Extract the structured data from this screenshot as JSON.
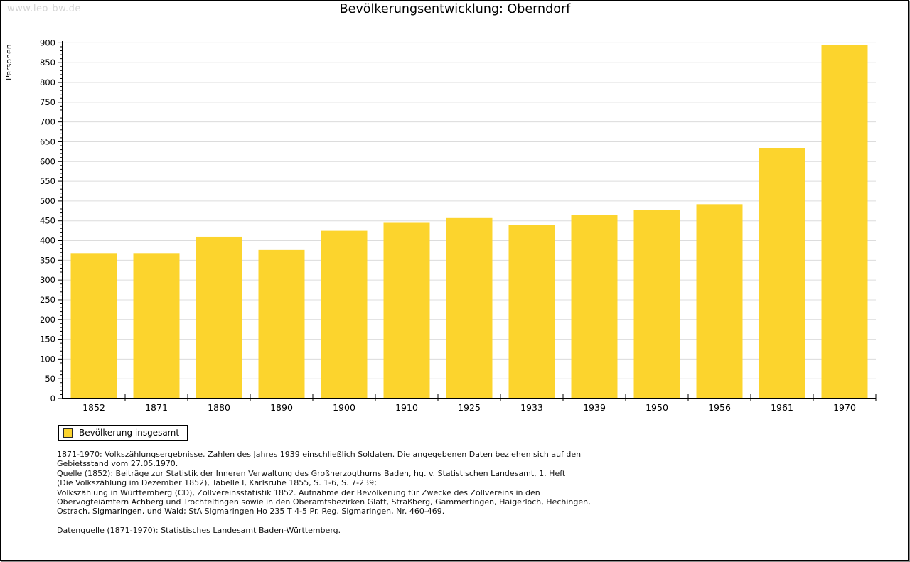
{
  "watermark": "www.leo-bw.de",
  "title": "Bevölkerungsentwicklung: Oberndorf",
  "chart_data": {
    "type": "bar",
    "title": "Bevölkerungsentwicklung: Oberndorf",
    "xlabel": "",
    "ylabel": "Personen",
    "categories": [
      "1852",
      "1871",
      "1880",
      "1890",
      "1900",
      "1910",
      "1925",
      "1933",
      "1939",
      "1950",
      "1956",
      "1961",
      "1970"
    ],
    "values": [
      368,
      368,
      410,
      376,
      425,
      445,
      457,
      440,
      465,
      478,
      492,
      634,
      895
    ],
    "series_name": "Bevölkerung insgesamt",
    "ylim": [
      0,
      900
    ],
    "ytick_step": 50,
    "yminor_step": 10,
    "grid": true,
    "legend_position": "bottom-left",
    "bar_color": "#FCD42D",
    "grid_color": "#dcdcdc",
    "axis_color": "#000000"
  },
  "legend": {
    "label": "Bevölkerung insgesamt",
    "swatch_color": "#FCD42D"
  },
  "footnotes": {
    "lines": [
      "1871-1970: Volkszählungsergebnisse. Zahlen des Jahres 1939 einschließlich Soldaten. Die angegebenen Daten beziehen sich auf den",
      "Gebietsstand vom 27.05.1970.",
      "Quelle (1852): Beiträge zur Statistik der Inneren Verwaltung des Großherzogthums Baden, hg. v. Statistischen Landesamt, 1. Heft",
      "(Die Volkszählung im Dezember 1852), Tabelle I, Karlsruhe 1855, S. 1-6, S. 7-239;",
      "Volkszählung in Württemberg (CD), Zollvereinsstatistik 1852. Aufnahme der Bevölkerung für Zwecke des Zollvereins in den",
      "Obervogteiämtern Achberg und Trochtelfingen sowie in den Oberamtsbezirken Glatt, Straßberg, Gammertingen, Haigerloch, Hechingen,",
      "Ostrach, Sigmaringen, und Wald; StA Sigmaringen Ho 235 T 4-5 Pr. Reg. Sigmaringen, Nr. 460-469.",
      "",
      "Datenquelle (1871-1970): Statistisches Landesamt Baden-Württemberg."
    ]
  }
}
